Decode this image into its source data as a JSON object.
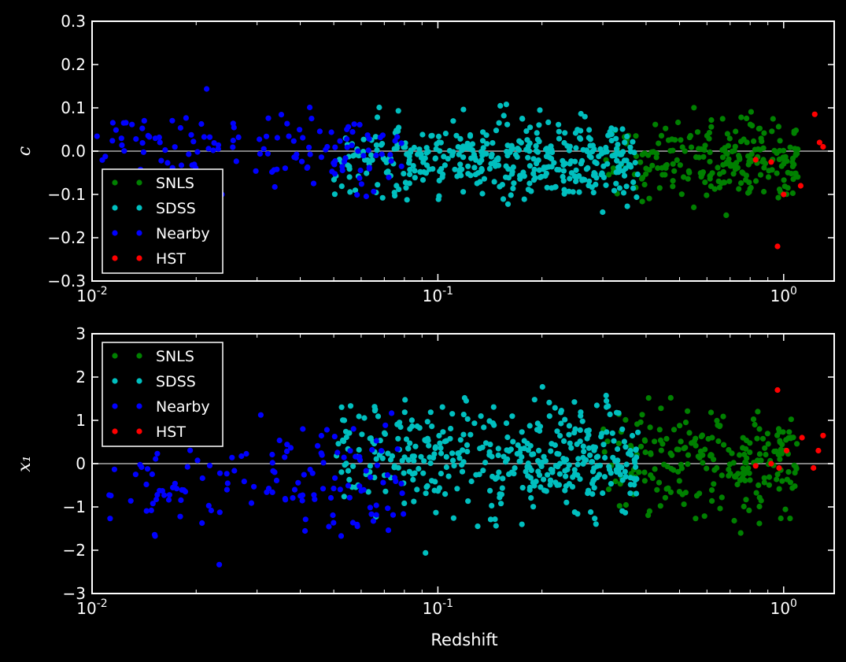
{
  "chart_data": [
    {
      "type": "scatter",
      "panel": "top",
      "ylabel": "c",
      "xlabel": "",
      "xscale": "log",
      "xlim": [
        0.01,
        1.4
      ],
      "ylim": [
        -0.3,
        0.3
      ],
      "yticks": [
        "0.3",
        "0.2",
        "0.1",
        "0.0",
        "−0.1",
        "−0.2",
        "−0.3"
      ],
      "xticks": [
        {
          "base": "10",
          "exp": "-2"
        },
        {
          "base": "10",
          "exp": "-1"
        },
        {
          "base": "10",
          "exp": "0"
        }
      ],
      "reference_line": 0.0,
      "legend": {
        "position": "lower-left",
        "entries": [
          "SNLS",
          "SDSS",
          "Nearby",
          "HST"
        ]
      },
      "colors": {
        "SNLS": "#008000",
        "SDSS": "#00bfbf",
        "Nearby": "#0000ff",
        "HST": "#ff0000",
        "zero_line": "#808080"
      },
      "series": [
        {
          "name": "SNLS",
          "color": "#008000",
          "z_range": [
            0.3,
            1.1
          ],
          "y_mean": -0.02,
          "y_spread": 0.075,
          "count": 230
        },
        {
          "name": "SDSS",
          "color": "#00bfbf",
          "z_range": [
            0.05,
            0.38
          ],
          "y_mean": -0.02,
          "y_spread": 0.075,
          "count": 420
        },
        {
          "name": "Nearby",
          "color": "#0000ff",
          "z_range": [
            0.01,
            0.08
          ],
          "y_mean": 0.0,
          "y_spread": 0.08,
          "count": 140
        },
        {
          "name": "HST",
          "color": "#ff0000",
          "points": [
            [
              0.83,
              -0.02
            ],
            [
              0.92,
              -0.025
            ],
            [
              0.96,
              -0.22
            ],
            [
              1.0,
              -0.1
            ],
            [
              1.12,
              -0.08
            ],
            [
              1.23,
              0.085
            ],
            [
              1.27,
              0.02
            ],
            [
              1.3,
              0.01
            ]
          ]
        }
      ]
    },
    {
      "type": "scatter",
      "panel": "bottom",
      "ylabel": "x₁",
      "xlabel": "Redshift",
      "xscale": "log",
      "xlim": [
        0.01,
        1.4
      ],
      "ylim": [
        -3,
        3
      ],
      "yticks": [
        "3",
        "2",
        "1",
        "0",
        "−1",
        "−2",
        "−3"
      ],
      "xticks": [
        {
          "base": "10",
          "exp": "-2"
        },
        {
          "base": "10",
          "exp": "-1"
        },
        {
          "base": "10",
          "exp": "0"
        }
      ],
      "reference_line": 0.0,
      "legend": {
        "position": "upper-left",
        "entries": [
          "SNLS",
          "SDSS",
          "Nearby",
          "HST"
        ]
      },
      "colors": {
        "SNLS": "#008000",
        "SDSS": "#00bfbf",
        "Nearby": "#0000ff",
        "HST": "#ff0000",
        "zero_line": "#808080"
      },
      "series": [
        {
          "name": "SNLS",
          "color": "#008000",
          "z_range": [
            0.3,
            1.1
          ],
          "y_mean": 0.1,
          "y_spread": 0.9,
          "count": 230
        },
        {
          "name": "SDSS",
          "color": "#00bfbf",
          "z_range": [
            0.05,
            0.38
          ],
          "y_mean": 0.1,
          "y_spread": 0.95,
          "count": 420
        },
        {
          "name": "Nearby",
          "color": "#0000ff",
          "z_range": [
            0.01,
            0.08
          ],
          "y_mean": -0.5,
          "y_spread": 1.0,
          "count": 140
        },
        {
          "name": "HST",
          "color": "#ff0000",
          "points": [
            [
              0.83,
              -0.05
            ],
            [
              0.92,
              0.0
            ],
            [
              0.96,
              1.7
            ],
            [
              0.97,
              -0.1
            ],
            [
              1.02,
              0.3
            ],
            [
              1.13,
              0.6
            ],
            [
              1.22,
              -0.1
            ],
            [
              1.26,
              0.3
            ],
            [
              1.3,
              0.65
            ]
          ]
        }
      ]
    }
  ]
}
